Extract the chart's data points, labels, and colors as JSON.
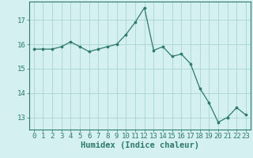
{
  "x": [
    0,
    1,
    2,
    3,
    4,
    5,
    6,
    7,
    8,
    9,
    10,
    11,
    12,
    13,
    14,
    15,
    16,
    17,
    18,
    19,
    20,
    21,
    22,
    23
  ],
  "y": [
    15.8,
    15.8,
    15.8,
    15.9,
    16.1,
    15.9,
    15.7,
    15.8,
    15.9,
    16.0,
    16.4,
    16.9,
    17.5,
    15.75,
    15.9,
    15.5,
    15.6,
    15.2,
    14.2,
    13.6,
    12.8,
    13.0,
    13.4,
    13.1
  ],
  "xlabel": "Humidex (Indice chaleur)",
  "ylabel": "",
  "xlim": [
    -0.5,
    23.5
  ],
  "ylim": [
    12.5,
    17.75
  ],
  "yticks": [
    13,
    14,
    15,
    16,
    17
  ],
  "xticks": [
    0,
    1,
    2,
    3,
    4,
    5,
    6,
    7,
    8,
    9,
    10,
    11,
    12,
    13,
    14,
    15,
    16,
    17,
    18,
    19,
    20,
    21,
    22,
    23
  ],
  "line_color": "#2d7a6b",
  "marker_color": "#2d7a6b",
  "bg_color": "#d5f0f0",
  "grid_color": "#aad4d4",
  "axis_color": "#2d7a6b",
  "label_fontsize": 7.5,
  "tick_fontsize": 6.5
}
